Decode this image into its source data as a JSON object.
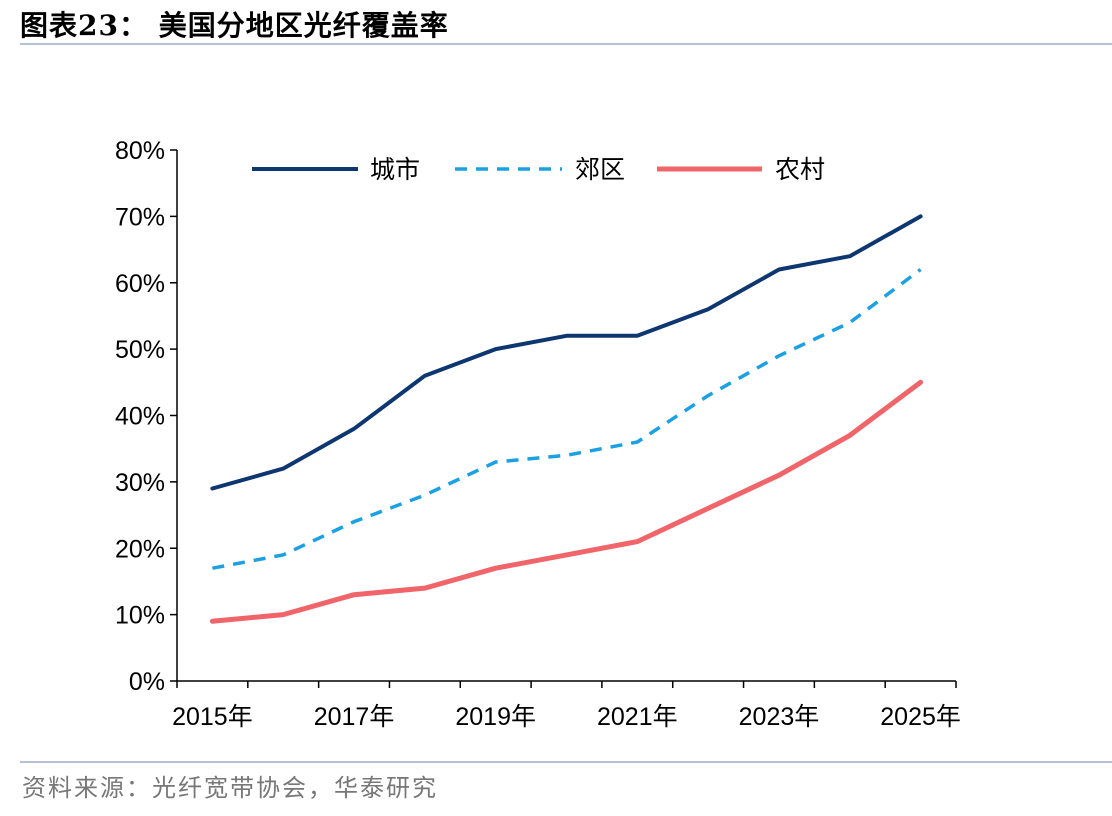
{
  "header": {
    "title": "图表23：   美国分地区光纤覆盖率"
  },
  "footer": {
    "source": "资料来源：光纤宽带协会，华泰研究"
  },
  "chart_data": {
    "type": "line",
    "x": [
      "2015年",
      "2016年",
      "2017年",
      "2018年",
      "2019年",
      "2020年",
      "2021年",
      "2022年",
      "2023年",
      "2024年",
      "2025年"
    ],
    "x_tick_labels": [
      "2015年",
      "2017年",
      "2019年",
      "2021年",
      "2023年",
      "2025年"
    ],
    "y_tick_labels": [
      "0%",
      "10%",
      "20%",
      "30%",
      "40%",
      "50%",
      "60%",
      "70%",
      "80%"
    ],
    "ylim": [
      0,
      80
    ],
    "y_unit": "%",
    "legend_position": "top",
    "grid": false,
    "series": [
      {
        "name": "城市",
        "color": "#0e3670",
        "style": "solid",
        "values": [
          29,
          32,
          38,
          46,
          50,
          52,
          52,
          56,
          62,
          64,
          70
        ]
      },
      {
        "name": "郊区",
        "color": "#1ba0e2",
        "style": "dashed",
        "values": [
          17,
          19,
          24,
          28,
          33,
          34,
          36,
          43,
          49,
          54,
          62
        ]
      },
      {
        "name": "农村",
        "color": "#f0656a",
        "style": "solid",
        "values": [
          9,
          10,
          13,
          14,
          17,
          19,
          21,
          26,
          31,
          37,
          45
        ]
      }
    ]
  }
}
